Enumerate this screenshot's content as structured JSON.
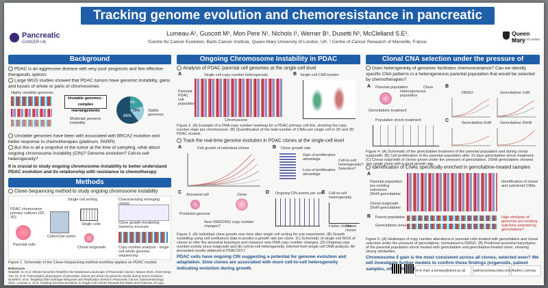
{
  "header": {
    "title": "Tracking genome evolution and chemoresistance in pancreatic cancer",
    "authors": "Lumeau A¹, Guscott M¹, Mon Pere N¹, Nichols I¹, Werner B¹, Dusetti N², McClelland S.E¹.",
    "affiliations": "¹Centre for Cancer Evolution, Barts Cancer Institute, Queen Mary University of London, UK. ² Centre of Cancer Research of Marseille, France.",
    "logo_left_main": "Pancreatic",
    "logo_left_sub": "CANCER UK",
    "logo_right_main": "Queen Mary",
    "logo_right_sub": "University of London"
  },
  "background": {
    "heading": "Background",
    "p1": "PDAC is an aggressive disease with very poor prognosis and few effective therapeutic options",
    "p2": "Large WGS studies showed that PDAC tumors have genomic instability, gains and losses of whole or parts of chromosomes",
    "fig_label_1": "Highly unstable genomes",
    "fig_label_2": "Unstable genomes - complex rearrangements",
    "fig_label_3": "Moderate genomic instability",
    "fig_label_4": "Stable genomes",
    "pie_values": [
      "6%",
      "28%",
      "66%"
    ],
    "p3": "Unstable genomes have been with associated with BRCA2 mutation and better response to chemotherapies (platinum, PARPi)",
    "p4": "But this is all a snapshot of the tumor at the time of sampling, what about ongoing chromosome instability (CIN)? Genome evolution? Cell-to-cell heterogeneity?",
    "aim": "It is crucial to study ongoing chromosome instability to better understand PDAC evolution and its relationship with resistance to chemotherapy"
  },
  "methods": {
    "heading": "Methods",
    "subheading": "Clone-Sequencing method to study ongoing chromosome instability",
    "lbl_single": "Single cell sorting",
    "lbl_char": "Characterising emerging clones",
    "lbl_pdac": "PDAC chemonaive primary cultures (2D, 3D)",
    "lbl_sorter": "CellenOne sorter",
    "lbl_single_cells": "Single cells",
    "lbl_outgrowth": "Clonal outgrowth",
    "lbl_parental": "Parental cells",
    "lbl_clone": "Clone growth monitoring Sartorius Incucyte",
    "lbl_cna": "Copy number analysis - single cell whole genome sequencing",
    "caption": "Figure 1. Schematic of the Clone-Sequencing method workflow applied on PDAC models",
    "refs_heading": "References",
    "refs": "Waddell, N. et al. Whole Genomes Redefine the Mutational Landscape of Pancreatic Cancer. Nature 2015. Chan-Seng-Yue, M. et al. Transcription phenotypes of pancreatic cancer are driven by genomic events during tumor evolution. Dusetti N. et al. Targeting DNA Damage Response and Replication Stress in Pancreatic Cancer. Gastroenterology 2021. Lumeau A. et al. Tracking Genome Evolution in Single Cell Clones Reveals the Rates and Features of Copy Number Alterations Generated by Ongoing Chromosomal Instability in Cancer Cells. bioRxiv 2023."
  },
  "cin": {
    "heading": "Ongoing Chromosome Instability in PDAC",
    "sub1": "Analysis of PDAC parental cell genomes at the single-cell level",
    "lbl_heat": "Parental PDAC cell population",
    "lbl_hetero": "Single cell copy number heterogeneity",
    "lbl_chrom": "Chromosome",
    "lbl_cna_burden": "Single cell CNA burden",
    "caption2": "Figure 2. (A) Example of a DNA copy number heatmap for a PDAC primary cell line, showing the copy number state per chromosome. (B) Quantification of the total number of CNAs per single cell in 2D and 3D PDAC models.",
    "sub2": "Track the real-time genome evolution in PDAC clones at the single-cell level",
    "lbl_growth": "Cell growth of individual clones",
    "lbl_clone_growth": "Clone growth rate",
    "lbl_gain": "Gain of proliferative advantage",
    "lbl_loss": "Loss of proliferative advantage",
    "lbl_q": "Cell-to-cell heterogeneity? Selection?",
    "lbl_ancestral": "Ancestral cell",
    "lbl_predicted": "Predicted genome",
    "lbl_new": "New ONGOING copy number changes?",
    "lbl_ongoing": "Ongoing CIN events per cell",
    "lbl_c2c": "Cell-to-cell heterogeneity",
    "lbl_clone": "Clone",
    "lbl_faster": "Faster clones",
    "lbl_slower": "Slower clones",
    "caption3": "Figure 3. (A) Individual clone growth over time after single cell sorting for one experiment. (B) Growth modelling using cell confluence data to predict a growth rate per clone. (C) Schematic of single cell WGS of clones to infer the ancestral karyotype and measure new DNA copy number changes. (D) Ongoing copy number events since outgrowth and (E) cell-to-cell heterogeneity, inferred from single cell DNA analysis. All presented results obtained in PDAC021T.",
    "conclusion": "PDAC cells have ongoing CIN suggesting a potential for genome evolution and adaptation. Slow clones are associated with more cell-to-cell heterogeneity indicating evolution during growth."
  },
  "clonal": {
    "heading": "Clonal CNA selection under the pressure of gemcitabine",
    "q": "Does heterogeneity of genomes facilitates chemoresistance? Can we identify specific CNA patterns in a heterogeneous parental population that would be selected by chemotherapies?",
    "lbl_parental": "Parental population",
    "lbl_heterogeneous": "Heterogeneous population",
    "lbl_clone": "Clone",
    "lbl_gem": "Gemcitabine treatment",
    "lbl_dmso": "DMSO",
    "lbl_gem1": "Gemcitabine 1nM",
    "lbl_gem5": "Gemcitabine 5nM",
    "lbl_gem20": "Gemcitabine 20nM",
    "lbl_shock": "Population shock treatment",
    "caption4": "Figure 4. (A) Schematic of the gemcitabine treatment of the parental population and during clonal outgrowth. (B) Cell proliferation of the parental population after 10 days gemcitabine shock treatment. (C) Clonal outgrowth of clones grown under the pressure of gemcitabine. 20nM gemcitabine showed one single clone with a good growth rate.",
    "sub2": "Identification of CNAs specifically enriched in gemcitabine-treated samples",
    "lbl_parental_pop": "Parental population pre-existing subclones",
    "lbl_gem_pop": "20nM gemcitabine",
    "lbl_clonal_pop": "Clonal outgrowth 20nM gemcitabine",
    "lbl_ident": "Identification of clonal and subclonal CNAs",
    "lbl_parent_pop2": "Parent population",
    "lbl_gem_clone": "Gemcitabine clone",
    "lbl_high": "High similarity of genomes pre-existing subclone selected by gemcitabine?",
    "caption5": "Figure 5. (A) Heatmaps of copy number alterations in parental cells treated with gemcitabine and clonal selection under the pressure of gemcitabine, normalized to DMSO. (B) Predicted ancestral karyotypes of the parental population shock treated with gemcitabine and gemcitabine-treated clone, showing strong similarities.",
    "conclusion": "Chromosome 5 gain is the most consistent across all clones, selected even? We will investigate further models to confirm these findings (organoids, patient samples, other chemotherapies).",
    "email": "E-mail: a.lumeau@qmul.ac.uk",
    "web": "audrey.lumeau.bsky.social",
    "name": "Audrey Lumeau"
  },
  "colors": {
    "title_bg": "#1f5ea8",
    "section_bg": "#1f5ea8",
    "accent_purple": "#3b2a7a"
  }
}
